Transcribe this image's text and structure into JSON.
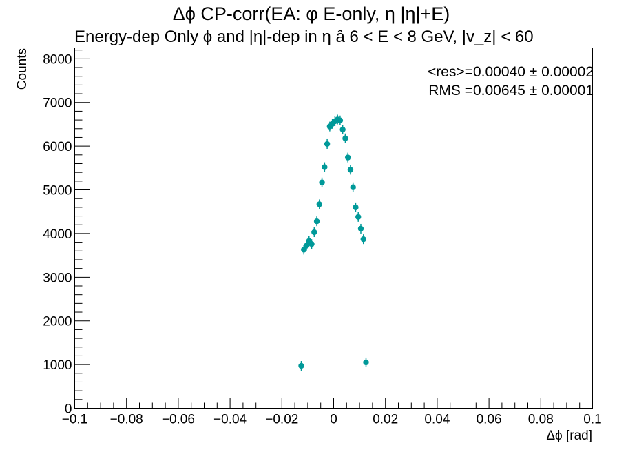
{
  "chart_data": {
    "type": "scatter",
    "title": "Δϕ CP-corr(EA: φ E-only, η |η|+E)",
    "subtitle": "Energy-dep Only ϕ and |η|-dep in η   â   6 < E < 8 GeV, |v_z| < 60",
    "xlabel": "Δϕ  [rad]",
    "ylabel": "Counts",
    "xlim": [
      -0.1,
      0.1
    ],
    "ylim": [
      0,
      8250
    ],
    "xticks": [
      -0.1,
      -0.08,
      -0.06,
      -0.04,
      -0.02,
      0,
      0.02,
      0.04,
      0.06,
      0.08,
      0.1
    ],
    "xtick_labels": [
      "−0.1",
      "−0.08",
      "−0.06",
      "−0.04",
      "−0.02",
      "0",
      "0.02",
      "0.04",
      "0.06",
      "0.08",
      "0.1"
    ],
    "yticks": [
      0,
      1000,
      2000,
      3000,
      4000,
      5000,
      6000,
      7000,
      8000
    ],
    "ytick_labels": [
      "0",
      "1000",
      "2000",
      "3000",
      "4000",
      "5000",
      "6000",
      "7000",
      "8000"
    ],
    "grid": false,
    "marker_color": "#009999",
    "stats": {
      "mean_line": "<res>=0.00040 ± 0.00002",
      "rms_line": "RMS =0.00645 ± 0.00001"
    },
    "series": [
      {
        "x": [
          -0.0125,
          -0.0115,
          -0.0105,
          -0.0095,
          -0.0085,
          -0.0075,
          -0.0065,
          -0.0055,
          -0.0045,
          -0.0035,
          -0.0025,
          -0.0015,
          -0.0005,
          0.0005,
          0.0015,
          0.0025,
          0.0035,
          0.0045,
          0.0055,
          0.0065,
          0.0075,
          0.0085,
          0.0095,
          0.0105,
          0.0115,
          0.0125
        ],
        "y": [
          970,
          3630,
          3720,
          3830,
          3760,
          4030,
          4280,
          4670,
          5170,
          5520,
          6050,
          6450,
          6510,
          6570,
          6610,
          6590,
          6380,
          6180,
          5740,
          5460,
          5060,
          4600,
          4380,
          4110,
          3870,
          1050
        ]
      }
    ]
  }
}
